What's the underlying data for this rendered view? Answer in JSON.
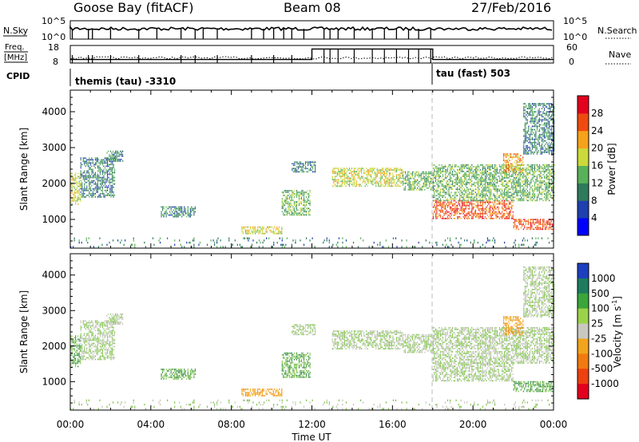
{
  "header": {
    "station": "Goose Bay (fitACF)",
    "beam": "Beam 08",
    "date": "27/Feb/2016"
  },
  "params": {
    "nsky_label": "N.Sky",
    "nsky_ticks": [
      "10^5",
      "10^0"
    ],
    "nsearch_label": "N.Search",
    "nsearch_ticks": [
      "10^5",
      "10^0"
    ],
    "freq_label_1": "Freq.",
    "freq_label_2": "[MHz]",
    "freq_ticks": [
      "18",
      "8"
    ],
    "nave_label": "Nave",
    "nave_ticks": [
      "60",
      "0"
    ],
    "cpid_label": "CPID",
    "cpid_segments": [
      {
        "name": "themis (tau) -3310",
        "start_hour": 0,
        "end_hour": 18
      },
      {
        "name": "tau (fast) 503",
        "start_hour": 18,
        "end_hour": 24
      }
    ]
  },
  "power_panel": {
    "ylabel": "Slant Range [km]",
    "yticks": [
      "1000",
      "2000",
      "3000",
      "4000"
    ],
    "colorbar_label": "Power [dB]",
    "colorbar_ticks": [
      "4",
      "8",
      "12",
      "16",
      "20",
      "24",
      "28"
    ],
    "colorbar_colors": [
      "#0000ff",
      "#1e3fae",
      "#2e7a5c",
      "#58b158",
      "#cbd93a",
      "#f6a21a",
      "#ef4b10",
      "#e4001f"
    ]
  },
  "velocity_panel": {
    "ylabel": "Slant Range [km]",
    "yticks": [
      "1000",
      "2000",
      "3000",
      "4000"
    ],
    "colorbar_label": "Velocity [m s",
    "colorbar_sup": "-1",
    "colorbar_label_end": "]",
    "colorbar_ticks": [
      "1000",
      "500",
      "100",
      "25",
      "-25",
      "-100",
      "-500",
      "-1000"
    ],
    "colorbar_colors": [
      "#1c3fbf",
      "#1e7b5e",
      "#3aa63a",
      "#9bd24a",
      "#c8c8c0",
      "#f2a41c",
      "#f07a10",
      "#ef4010",
      "#e4001f"
    ]
  },
  "xaxis": {
    "label": "Time UT",
    "ticks": [
      "00:00",
      "04:00",
      "08:00",
      "12:00",
      "16:00",
      "20:00",
      "00:00"
    ]
  },
  "chart_data": {
    "type": "heatmap",
    "title": "Goose Bay (fitACF) Beam 08 27/Feb/2016",
    "xlabel": "Time UT",
    "ylabel": "Slant Range [km]",
    "xlim_hours": [
      0,
      24
    ],
    "ylim_km": [
      200,
      4600
    ],
    "power_colorbar_db": [
      4,
      8,
      12,
      16,
      20,
      24,
      28
    ],
    "velocity_colorbar_ms": [
      1000,
      500,
      100,
      25,
      -25,
      -100,
      -500,
      -1000
    ],
    "freq_mhz": {
      "before_12h": 10,
      "12h_to_18h": 16,
      "after_18h": 10
    },
    "echo_regions": [
      {
        "t": [
          0.0,
          0.5
        ],
        "r": [
          1400,
          2300
        ],
        "power": 16,
        "velocity": 100
      },
      {
        "t": [
          0.5,
          2.2
        ],
        "r": [
          1600,
          2700
        ],
        "power": 8,
        "velocity": 25
      },
      {
        "t": [
          1.8,
          2.6
        ],
        "r": [
          2600,
          2900
        ],
        "power": 8,
        "velocity": 25
      },
      {
        "t": [
          4.5,
          6.2
        ],
        "r": [
          1050,
          1350
        ],
        "power": 8,
        "velocity": 100
      },
      {
        "t": [
          8.5,
          10.5
        ],
        "r": [
          580,
          800
        ],
        "power": 16,
        "velocity": -100
      },
      {
        "t": [
          10.5,
          11.9
        ],
        "r": [
          1100,
          1800
        ],
        "power": 12,
        "velocity": 100
      },
      {
        "t": [
          11.0,
          12.2
        ],
        "r": [
          2300,
          2600
        ],
        "power": 8,
        "velocity": 25
      },
      {
        "t": [
          13.0,
          16.5
        ],
        "r": [
          1900,
          2400
        ],
        "power": 16,
        "velocity": 25
      },
      {
        "t": [
          16.5,
          18.0
        ],
        "r": [
          1800,
          2300
        ],
        "power": 12,
        "velocity": 25
      },
      {
        "t": [
          18.0,
          22.0
        ],
        "r": [
          1000,
          1500
        ],
        "power": 24,
        "velocity": 25
      },
      {
        "t": [
          18.0,
          24.0
        ],
        "r": [
          1500,
          2500
        ],
        "power": 12,
        "velocity": 25
      },
      {
        "t": [
          22.0,
          24.0
        ],
        "r": [
          700,
          1000
        ],
        "power": 24,
        "velocity": 100
      },
      {
        "t": [
          21.5,
          22.5
        ],
        "r": [
          2300,
          2800
        ],
        "power": 20,
        "velocity": -100
      },
      {
        "t": [
          22.5,
          24.0
        ],
        "r": [
          2800,
          4200
        ],
        "power": 8,
        "velocity": 25
      },
      {
        "t": [
          0.0,
          24.0
        ],
        "r": [
          200,
          450
        ],
        "power": 8,
        "velocity": 25
      }
    ]
  }
}
